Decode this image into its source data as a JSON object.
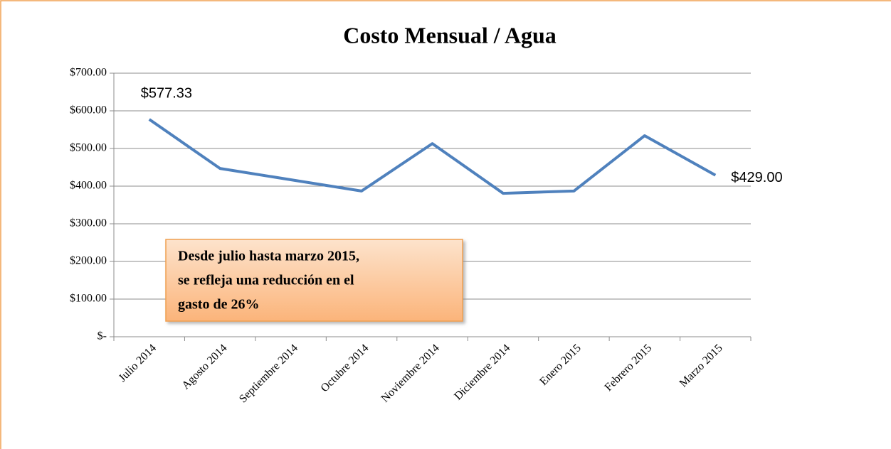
{
  "chart_data": {
    "type": "line",
    "title": "Costo Mensual / Agua",
    "categories": [
      "Julio 2014",
      "Agosto 2014",
      "Septiembre 2014",
      "Octubre 2014",
      "Noviembre 2014",
      "Diciembre 2014",
      "Enero 2015",
      "Febrero 2015",
      "Marzo 2015"
    ],
    "series": [
      {
        "name": "Costo",
        "color": "#4f81bd",
        "values": [
          577.33,
          447,
          417,
          387,
          513,
          381,
          387,
          534,
          429
        ],
        "value_labels": [
          "$577.33",
          null,
          null,
          null,
          null,
          null,
          null,
          null,
          "$429.00"
        ]
      }
    ],
    "ylim": [
      0,
      700
    ],
    "yticks": [
      {
        "value": 0,
        "label": "$-"
      },
      {
        "value": 100,
        "label": "$100.00"
      },
      {
        "value": 200,
        "label": "$200.00"
      },
      {
        "value": 300,
        "label": "$300.00"
      },
      {
        "value": 400,
        "label": "$400.00"
      },
      {
        "value": 500,
        "label": "$500.00"
      },
      {
        "value": 600,
        "label": "$600.00"
      },
      {
        "value": 700,
        "label": "$700.00"
      }
    ],
    "grid": true,
    "annotation": [
      "Desde julio hasta marzo 2015,",
      "se refleja una reducción en el",
      "gasto de 26%"
    ]
  }
}
